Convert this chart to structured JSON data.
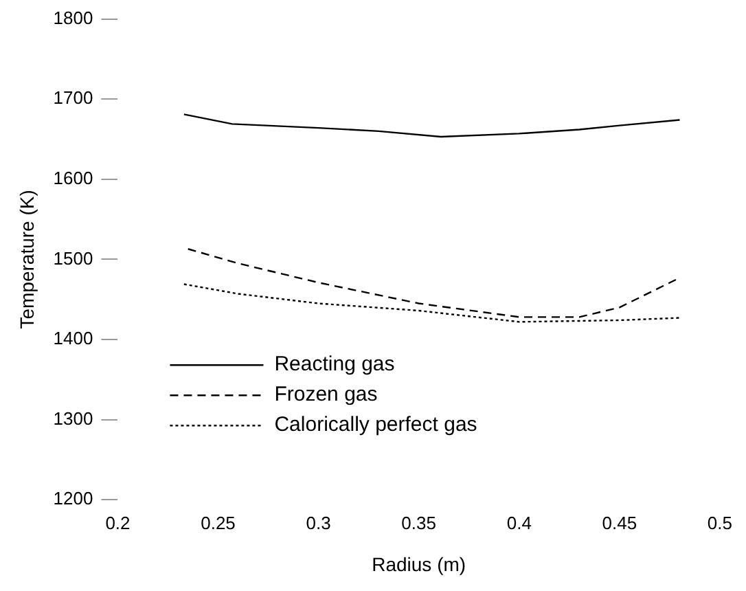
{
  "chart_data": {
    "type": "line",
    "xlabel": "Radius (m)",
    "ylabel": "Temperature (K)",
    "xlim": [
      0.2,
      0.5
    ],
    "xticks": [
      0.2,
      0.25,
      0.3,
      0.35,
      0.4,
      0.45,
      0.5
    ],
    "ylim": [
      1200,
      1800
    ],
    "yticks": [
      1200,
      1300,
      1400,
      1500,
      1600,
      1700,
      1800
    ],
    "grid": false,
    "legend": "bottom left",
    "marker": "none",
    "series": [
      {
        "name": "Reacting gas",
        "color": "#000000",
        "line_style": "solid",
        "x": [
          0.233,
          0.257,
          0.3,
          0.33,
          0.361,
          0.4,
          0.43,
          0.45,
          0.48
        ],
        "values": [
          1681,
          1669,
          1664,
          1660,
          1653,
          1657,
          1662,
          1667,
          1674
        ]
      },
      {
        "name": "Frozen gas",
        "color": "#000000",
        "line_style": "dashed",
        "x": [
          0.235,
          0.26,
          0.3,
          0.35,
          0.4,
          0.43,
          0.45,
          0.48
        ],
        "values": [
          1513,
          1495,
          1471,
          1445,
          1428,
          1428,
          1440,
          1477
        ]
      },
      {
        "name": "Calorically perfect gas",
        "color": "#000000",
        "line_style": "dotted",
        "x": [
          0.233,
          0.26,
          0.3,
          0.35,
          0.4,
          0.45,
          0.48
        ],
        "values": [
          1469,
          1457,
          1445,
          1436,
          1422,
          1424,
          1427
        ]
      }
    ]
  }
}
